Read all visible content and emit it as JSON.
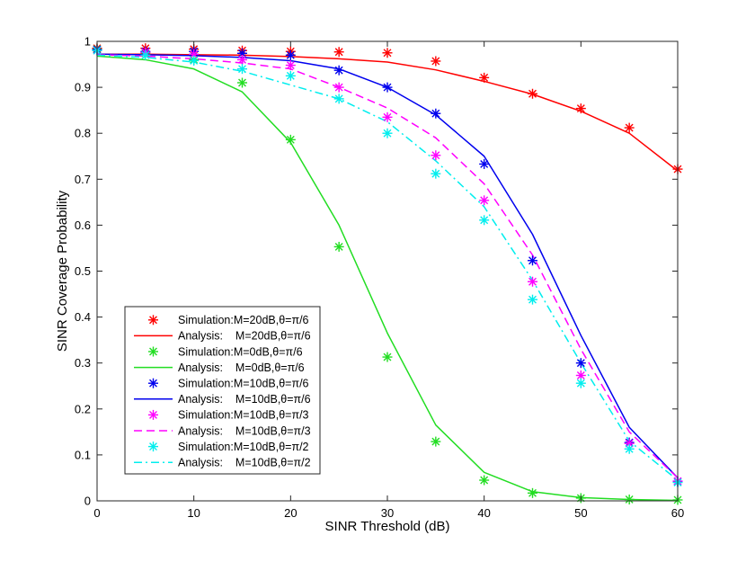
{
  "chart_data": {
    "type": "line",
    "title": "",
    "xlabel": "SINR Threshold (dB)",
    "ylabel": "SINR Coverage Probability",
    "xlim": [
      0,
      60
    ],
    "ylim": [
      0,
      1
    ],
    "xticks": [
      0,
      10,
      20,
      30,
      40,
      50,
      60
    ],
    "yticks": [
      0,
      0.1,
      0.2,
      0.3,
      0.4,
      0.5,
      0.6,
      0.7,
      0.8,
      0.9,
      1
    ],
    "xtick_labels": [
      "0",
      "10",
      "20",
      "30",
      "40",
      "50",
      "60"
    ],
    "ytick_labels": [
      "0",
      "0.1",
      "0.2",
      "0.3",
      "0.4",
      "0.5",
      "0.6",
      "0.7",
      "0.8",
      "0.9",
      "1"
    ],
    "grid": false,
    "legend_position": "lower-left",
    "series": [
      {
        "name": "Simulation:M=20dB,θ=π/6",
        "kind": "markers",
        "marker": "asterisk",
        "color": "#ff0000",
        "x": [
          0,
          5,
          10,
          15,
          20,
          25,
          30,
          35,
          40,
          45,
          50,
          55,
          60
        ],
        "y": [
          0.985,
          0.985,
          0.983,
          0.98,
          0.978,
          0.977,
          0.975,
          0.957,
          0.921,
          0.886,
          0.854,
          0.812,
          0.722
        ]
      },
      {
        "name": "Analysis:    M=20dB,θ=π/6",
        "kind": "line",
        "dash": "solid",
        "color": "#ff0000",
        "x": [
          0,
          5,
          10,
          15,
          20,
          25,
          30,
          35,
          40,
          45,
          50,
          55,
          60
        ],
        "y": [
          0.972,
          0.972,
          0.971,
          0.97,
          0.967,
          0.962,
          0.955,
          0.938,
          0.913,
          0.885,
          0.848,
          0.8,
          0.718
        ]
      },
      {
        "name": "Simulation:M=0dB,θ=π/6",
        "kind": "markers",
        "marker": "asterisk",
        "color": "#22dd22",
        "x": [
          0,
          5,
          10,
          15,
          20,
          25,
          30,
          35,
          40,
          45,
          50,
          55,
          60
        ],
        "y": [
          0.983,
          0.975,
          0.96,
          0.91,
          0.786,
          0.553,
          0.313,
          0.129,
          0.045,
          0.017,
          0.006,
          0.003,
          0.002
        ]
      },
      {
        "name": "Analysis:    M=0dB,θ=π/6",
        "kind": "line",
        "dash": "solid",
        "color": "#22dd22",
        "x": [
          0,
          5,
          10,
          15,
          20,
          25,
          30,
          35,
          40,
          45,
          50,
          55,
          60
        ],
        "y": [
          0.968,
          0.96,
          0.94,
          0.89,
          0.78,
          0.6,
          0.365,
          0.165,
          0.062,
          0.02,
          0.007,
          0.003,
          0.001
        ]
      },
      {
        "name": "Simulation:M=10dB,θ=π/6",
        "kind": "markers",
        "marker": "asterisk",
        "color": "#0000ee",
        "x": [
          0,
          5,
          10,
          15,
          20,
          25,
          30,
          35,
          40,
          45,
          50,
          55,
          60
        ],
        "y": [
          0.982,
          0.978,
          0.978,
          0.974,
          0.97,
          0.937,
          0.9,
          0.843,
          0.733,
          0.523,
          0.3,
          0.127,
          0.042
        ]
      },
      {
        "name": "Analysis:    M=10dB,θ=π/6",
        "kind": "line",
        "dash": "solid",
        "color": "#0000ee",
        "x": [
          0,
          5,
          10,
          15,
          20,
          25,
          30,
          35,
          40,
          45,
          50,
          55,
          60
        ],
        "y": [
          0.972,
          0.971,
          0.969,
          0.965,
          0.958,
          0.94,
          0.9,
          0.84,
          0.75,
          0.58,
          0.36,
          0.16,
          0.05
        ]
      },
      {
        "name": "Simulation:M=10dB,θ=π/3",
        "kind": "markers",
        "marker": "asterisk",
        "color": "#ff00ff",
        "x": [
          0,
          5,
          10,
          15,
          20,
          25,
          30,
          35,
          40,
          45,
          50,
          55,
          60
        ],
        "y": [
          0.98,
          0.976,
          0.972,
          0.96,
          0.948,
          0.9,
          0.835,
          0.752,
          0.654,
          0.477,
          0.273,
          0.125,
          0.043
        ]
      },
      {
        "name": "Analysis:    M=10dB,θ=π/3",
        "kind": "line",
        "dash": "dashed",
        "color": "#ff00ff",
        "x": [
          0,
          5,
          10,
          15,
          20,
          25,
          30,
          35,
          40,
          45,
          50,
          55,
          60
        ],
        "y": [
          0.971,
          0.968,
          0.962,
          0.953,
          0.94,
          0.9,
          0.855,
          0.79,
          0.69,
          0.535,
          0.33,
          0.15,
          0.05
        ]
      },
      {
        "name": "Simulation:M=10dB,θ=π/2",
        "kind": "markers",
        "marker": "asterisk",
        "color": "#00eeee",
        "x": [
          0,
          5,
          10,
          15,
          20,
          25,
          30,
          35,
          40,
          45,
          50,
          55,
          60
        ],
        "y": [
          0.98,
          0.97,
          0.958,
          0.94,
          0.925,
          0.875,
          0.8,
          0.712,
          0.611,
          0.438,
          0.256,
          0.113,
          0.04
        ]
      },
      {
        "name": "Analysis:    M=10dB,θ=π/2",
        "kind": "line",
        "dash": "dashdot",
        "color": "#00eeee",
        "x": [
          0,
          5,
          10,
          15,
          20,
          25,
          30,
          35,
          40,
          45,
          50,
          55,
          60
        ],
        "y": [
          0.97,
          0.965,
          0.955,
          0.935,
          0.905,
          0.875,
          0.825,
          0.74,
          0.64,
          0.48,
          0.3,
          0.13,
          0.045
        ]
      }
    ]
  }
}
